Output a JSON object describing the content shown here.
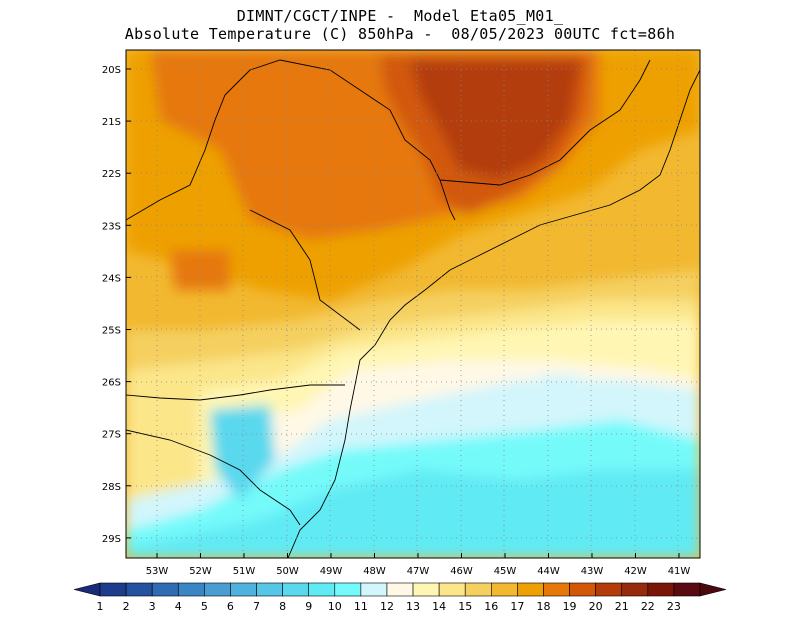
{
  "header": {
    "line1": "DIMNT/CGCT/INPE -  Model Eta05_M01_",
    "line2": "Absolute Temperature (C) 850hPa -  08/05/2023 00UTC fct=86h"
  },
  "axes": {
    "lat_labels": [
      "20S",
      "21S",
      "22S",
      "23S",
      "24S",
      "25S",
      "26S",
      "27S",
      "28S",
      "29S"
    ],
    "lon_labels": [
      "53W",
      "52W",
      "51W",
      "50W",
      "49W",
      "48W",
      "47W",
      "46W",
      "45W",
      "44W",
      "43W",
      "42W",
      "41W"
    ]
  },
  "colorbar": {
    "labels": [
      "1",
      "2",
      "3",
      "4",
      "5",
      "6",
      "7",
      "8",
      "9",
      "10",
      "11",
      "12",
      "13",
      "14",
      "15",
      "16",
      "17",
      "18",
      "19",
      "20",
      "21",
      "22",
      "23"
    ],
    "colors": [
      "#1e3c8c",
      "#2352a0",
      "#2f6cb4",
      "#3a86c4",
      "#4a9dd2",
      "#4fb2dc",
      "#56c6e6",
      "#5ad8ee",
      "#60eaf4",
      "#74fafa",
      "#d2f6fc",
      "#fff8e6",
      "#fff6b4",
      "#fbe68a",
      "#f5d060",
      "#f2b830",
      "#eea000",
      "#e6780a",
      "#d25808",
      "#b43c0a",
      "#962a0c",
      "#7a1608",
      "#5a0a10"
    ],
    "left_arrow_color": "#1a2a7a",
    "right_arrow_color": "#4a0a0c"
  }
}
